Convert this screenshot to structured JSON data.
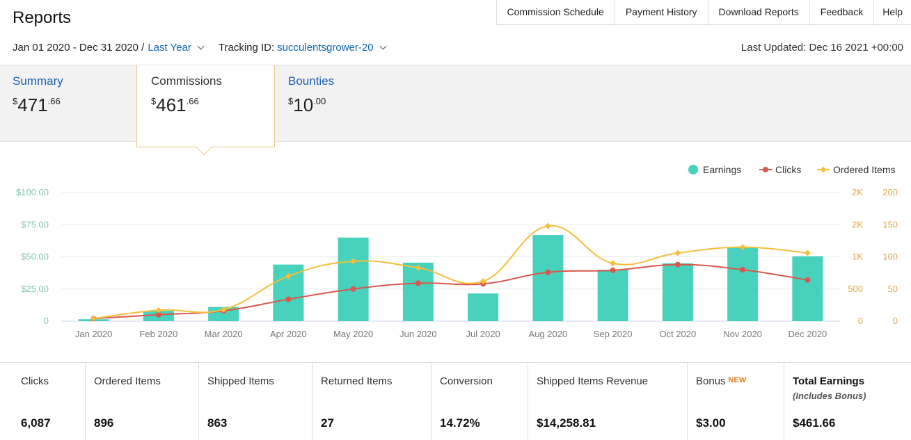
{
  "page": {
    "title": "Reports"
  },
  "top_nav": [
    "Commission Schedule",
    "Payment History",
    "Download Reports",
    "Feedback",
    "Help"
  ],
  "filters": {
    "date_range": "Jan 01 2020 - Dec 31 2020 /",
    "period_link": "Last Year",
    "tracking_label": "Tracking ID:",
    "tracking_id": "succulentsgrower-20",
    "last_updated": "Last Updated: Dec 16 2021 +00:00"
  },
  "tabs": {
    "summary": {
      "label": "Summary",
      "currency": "$",
      "whole": "471",
      "cents": ".66"
    },
    "commissions": {
      "label": "Commissions",
      "currency": "$",
      "whole": "461",
      "cents": ".66"
    },
    "bounties": {
      "label": "Bounties",
      "currency": "$",
      "whole": "10",
      "cents": ".00"
    }
  },
  "colors": {
    "earnings": "#48d1bd",
    "clicks": "#d9574c",
    "ordered": "#f6be3b",
    "link": "#0e67b3",
    "new_badge": "#e47911"
  },
  "chart_data": {
    "type": "bar",
    "categories": [
      "Jan 2020",
      "Feb 2020",
      "Mar 2020",
      "Apr 2020",
      "May 2020",
      "Jun 2020",
      "Jul 2020",
      "Aug 2020",
      "Sep 2020",
      "Oct 2020",
      "Nov 2020",
      "Dec 2020"
    ],
    "series": [
      {
        "name": "Earnings",
        "kind": "bar",
        "axis": "left",
        "values": [
          1.5,
          8,
          11,
          44,
          65,
          45.5,
          21.5,
          67,
          40,
          45,
          57,
          50.5
        ]
      },
      {
        "name": "Clicks",
        "kind": "line",
        "axis": "right-1",
        "values": [
          40,
          100,
          160,
          340,
          500,
          590,
          580,
          760,
          790,
          880,
          800,
          640
        ]
      },
      {
        "name": "Ordered Items",
        "kind": "line",
        "axis": "right-2",
        "values": [
          4,
          17,
          18,
          70,
          93,
          83,
          62,
          148,
          90,
          106,
          115,
          106
        ]
      }
    ],
    "left_axis": {
      "ylim": [
        0,
        100
      ],
      "ticks": [
        "0",
        "$25.00",
        "$50.00",
        "$75.00",
        "$100.00"
      ]
    },
    "right_axis_1": {
      "ylim": [
        0,
        2000
      ],
      "ticks": [
        "0",
        "500",
        "1K",
        "2K",
        "2K"
      ]
    },
    "right_axis_2": {
      "ylim": [
        0,
        200
      ],
      "ticks": [
        "0",
        "50",
        "100",
        "150",
        "200"
      ]
    },
    "legend": [
      "Earnings",
      "Clicks",
      "Ordered Items"
    ],
    "legend_position": "top-right",
    "grid": true
  },
  "stats": [
    {
      "label": "Clicks",
      "value": "6,087"
    },
    {
      "label": "Ordered Items",
      "value": "896"
    },
    {
      "label": "Shipped Items",
      "value": "863"
    },
    {
      "label": "Returned Items",
      "value": "27"
    },
    {
      "label": "Conversion",
      "value": "14.72%"
    },
    {
      "label": "Shipped Items Revenue",
      "value": "$14,258.81"
    },
    {
      "label": "Bonus",
      "badge": "NEW",
      "value": "$3.00"
    },
    {
      "label": "Total Earnings",
      "note": "(Includes Bonus)",
      "value": "$461.66"
    }
  ]
}
